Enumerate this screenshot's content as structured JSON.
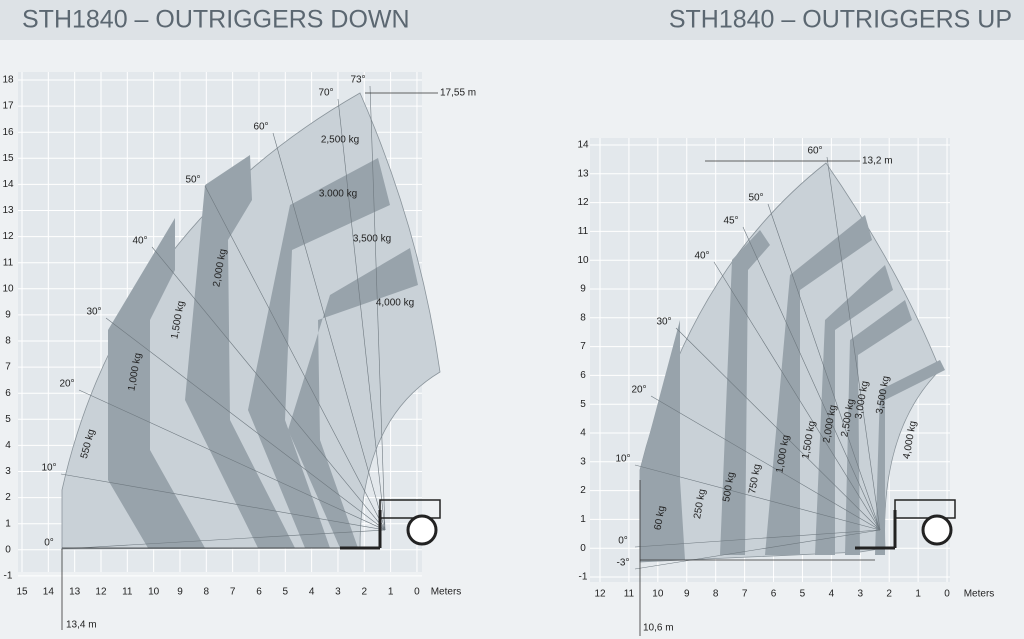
{
  "left": {
    "title": "STH1840 – OUTRIGGERS DOWN",
    "y_ticks": [
      "18",
      "17",
      "16",
      "15",
      "14",
      "13",
      "12",
      "11",
      "10",
      "9",
      "8",
      "7",
      "6",
      "5",
      "4",
      "3",
      "2",
      "1",
      "0",
      "-1"
    ],
    "x_ticks": [
      "15",
      "14",
      "13",
      "12",
      "11",
      "10",
      "9",
      "8",
      "7",
      "6",
      "5",
      "4",
      "3",
      "2",
      "1",
      "0"
    ],
    "x_unit": "Meters",
    "angles": [
      "73°",
      "70°",
      "60°",
      "50°",
      "40°",
      "30°",
      "20°",
      "10°",
      "0°"
    ],
    "loads": [
      "2,500 kg",
      "3.000 kg",
      "3,500 kg",
      "4,000 kg",
      "2,000 kg",
      "1,500 kg",
      "1,000 kg",
      "550 kg"
    ],
    "max_height": "17,55 m",
    "max_reach": "13,4 m"
  },
  "right": {
    "title": "STH1840 – OUTRIGGERS UP",
    "y_ticks": [
      "14",
      "13",
      "12",
      "11",
      "10",
      "9",
      "8",
      "7",
      "6",
      "5",
      "4",
      "3",
      "2",
      "1",
      "0",
      "-1"
    ],
    "x_ticks": [
      "12",
      "11",
      "10",
      "9",
      "8",
      "7",
      "6",
      "5",
      "4",
      "3",
      "2",
      "1",
      "0"
    ],
    "x_unit": "Meters",
    "angles": [
      "60°",
      "50°",
      "45°",
      "40°",
      "30°",
      "20°",
      "10°",
      "0°",
      "-3°"
    ],
    "loads": [
      "60 kg",
      "250 kg",
      "500 kg",
      "750 kg",
      "1,000 kg",
      "1,500 kg",
      "2,000 kg",
      "2,500 kg",
      "3,000 kg",
      "3,500 kg",
      "4,000 kg"
    ],
    "max_height": "13,2 m",
    "max_reach": "10,6 m"
  }
}
